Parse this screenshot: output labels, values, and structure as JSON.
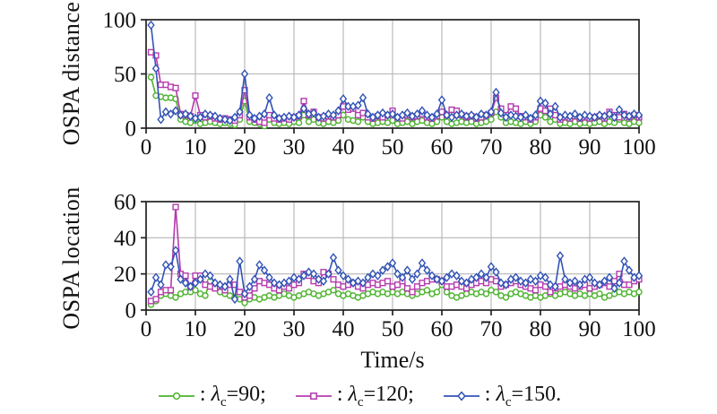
{
  "style": {
    "background": "#ffffff",
    "axis_color": "#222222",
    "grid_color": "#b5b5b5",
    "text_color": "#111111"
  },
  "legend": {
    "items": [
      {
        "marker": "circle",
        "color": "#4db32e",
        "prefix": ": ",
        "lambda": "λ",
        "sub": "c",
        "rest": "=90;",
        "label": ": λc=90;"
      },
      {
        "marker": "square",
        "color": "#b53bae",
        "prefix": ": ",
        "lambda": "λ",
        "sub": "c",
        "rest": "=120;",
        "label": ": λc=120;"
      },
      {
        "marker": "diamond",
        "color": "#3253b5",
        "prefix": ": ",
        "lambda": "λ",
        "sub": "c",
        "rest": "=150.",
        "label": ": λc=150."
      }
    ]
  },
  "chart_data": [
    {
      "type": "line",
      "title": "",
      "ylabel": "OSPA distance",
      "xlabel": "",
      "xlim": [
        0,
        100
      ],
      "ylim": [
        0,
        100
      ],
      "xticks": [
        0,
        10,
        20,
        30,
        40,
        50,
        60,
        70,
        80,
        90,
        100
      ],
      "yticks": [
        0,
        50,
        100
      ],
      "grid": true,
      "legend_position": "below-figure",
      "x_start": 1,
      "x_step": 1,
      "series": [
        {
          "name": "λc=90",
          "marker": "circle",
          "color": "#4db32e",
          "values": [
            47,
            30,
            29,
            28,
            28,
            27,
            8,
            6,
            5,
            7,
            4,
            5,
            6,
            5,
            4,
            5,
            4,
            3,
            8,
            25,
            6,
            5,
            4,
            2,
            8,
            5,
            4,
            5,
            4,
            6,
            5,
            12,
            6,
            8,
            5,
            4,
            6,
            5,
            7,
            12,
            8,
            7,
            6,
            10,
            6,
            4,
            5,
            6,
            5,
            7,
            4,
            5,
            6,
            4,
            6,
            7,
            5,
            4,
            6,
            10,
            6,
            4,
            5,
            6,
            5,
            6,
            4,
            5,
            6,
            8,
            15,
            10,
            5,
            6,
            5,
            4,
            6,
            4,
            6,
            12,
            10,
            6,
            8,
            4,
            5,
            4,
            6,
            4,
            5,
            4,
            5,
            6,
            4,
            6,
            5,
            8,
            5,
            4,
            6,
            5
          ]
        },
        {
          "name": "λc=120",
          "marker": "square",
          "color": "#b53bae",
          "values": [
            70,
            67,
            40,
            40,
            38,
            37,
            13,
            12,
            11,
            30,
            12,
            10,
            11,
            9,
            8,
            9,
            8,
            7,
            12,
            35,
            10,
            8,
            6,
            5,
            12,
            9,
            8,
            9,
            8,
            10,
            11,
            25,
            12,
            15,
            10,
            9,
            11,
            10,
            12,
            20,
            17,
            18,
            12,
            14,
            10,
            9,
            11,
            10,
            12,
            16,
            10,
            9,
            12,
            10,
            11,
            13,
            10,
            9,
            11,
            15,
            12,
            17,
            16,
            12,
            10,
            11,
            9,
            10,
            12,
            14,
            28,
            18,
            12,
            20,
            18,
            11,
            10,
            8,
            10,
            18,
            16,
            18,
            12,
            8,
            10,
            9,
            11,
            9,
            10,
            9,
            10,
            11,
            9,
            15,
            12,
            10,
            13,
            10,
            12,
            10
          ]
        },
        {
          "name": "λc=150",
          "marker": "diamond",
          "color": "#3253b5",
          "values": [
            95,
            55,
            8,
            15,
            13,
            16,
            12,
            13,
            11,
            9,
            10,
            13,
            12,
            11,
            9,
            8,
            7,
            10,
            15,
            50,
            12,
            9,
            11,
            13,
            28,
            12,
            9,
            10,
            11,
            10,
            12,
            18,
            13,
            14,
            10,
            11,
            13,
            12,
            16,
            27,
            20,
            20,
            21,
            28,
            13,
            10,
            12,
            14,
            12,
            13,
            10,
            12,
            14,
            11,
            13,
            16,
            12,
            10,
            13,
            26,
            12,
            10,
            12,
            13,
            11,
            12,
            10,
            13,
            12,
            15,
            33,
            14,
            10,
            12,
            11,
            10,
            12,
            9,
            12,
            25,
            23,
            13,
            20,
            10,
            12,
            11,
            13,
            10,
            12,
            11,
            10,
            12,
            11,
            13,
            10,
            17,
            12,
            11,
            13,
            12
          ]
        }
      ]
    },
    {
      "type": "line",
      "title": "",
      "ylabel": "OSPA location",
      "xlabel": "Time/s",
      "xlim": [
        0,
        100
      ],
      "ylim": [
        0,
        60
      ],
      "xticks": [
        0,
        10,
        20,
        30,
        40,
        50,
        60,
        70,
        80,
        90,
        100
      ],
      "yticks": [
        0,
        20,
        40,
        60
      ],
      "grid": true,
      "legend_position": "below-figure",
      "x_start": 1,
      "x_step": 1,
      "series": [
        {
          "name": "λc=90",
          "marker": "circle",
          "color": "#4db32e",
          "values": [
            3,
            5,
            8,
            9,
            8,
            7,
            9,
            10,
            10,
            11,
            9,
            8,
            16,
            13,
            10,
            9,
            8,
            7,
            6,
            4,
            6,
            7,
            6,
            7,
            8,
            7,
            8,
            9,
            8,
            7,
            8,
            9,
            10,
            9,
            8,
            9,
            10,
            11,
            9,
            8,
            9,
            8,
            7,
            8,
            9,
            10,
            9,
            10,
            9,
            10,
            9,
            10,
            9,
            8,
            9,
            10,
            11,
            9,
            10,
            14,
            10,
            8,
            7,
            8,
            9,
            10,
            9,
            10,
            9,
            11,
            10,
            8,
            7,
            9,
            10,
            9,
            8,
            7,
            8,
            7,
            8,
            9,
            8,
            9,
            10,
            9,
            8,
            9,
            8,
            9,
            8,
            9,
            7,
            8,
            9,
            10,
            9,
            10,
            9,
            10
          ]
        },
        {
          "name": "λc=120",
          "marker": "square",
          "color": "#b53bae",
          "values": [
            5,
            6,
            10,
            11,
            11,
            57,
            20,
            19,
            13,
            19,
            19,
            14,
            13,
            12,
            13,
            11,
            14,
            14,
            10,
            7,
            8,
            12,
            16,
            15,
            14,
            12,
            11,
            13,
            12,
            14,
            15,
            20,
            19,
            16,
            15,
            21,
            20,
            17,
            14,
            13,
            14,
            15,
            13,
            12,
            14,
            15,
            14,
            15,
            16,
            13,
            14,
            16,
            12,
            10,
            13,
            15,
            16,
            17,
            17,
            16,
            13,
            13,
            14,
            13,
            12,
            14,
            15,
            16,
            15,
            17,
            16,
            13,
            14,
            15,
            16,
            14,
            13,
            12,
            11,
            14,
            13,
            10,
            12,
            13,
            14,
            13,
            12,
            13,
            14,
            12,
            13,
            14,
            15,
            13,
            16,
            20,
            14,
            14,
            16,
            17
          ]
        },
        {
          "name": "λc=150",
          "marker": "diamond",
          "color": "#3253b5",
          "values": [
            10,
            18,
            14,
            25,
            24,
            33,
            17,
            15,
            13,
            15,
            17,
            20,
            19,
            15,
            14,
            13,
            17,
            6,
            27,
            9,
            13,
            17,
            25,
            22,
            18,
            15,
            14,
            15,
            16,
            18,
            17,
            19,
            21,
            20,
            17,
            16,
            20,
            29,
            22,
            19,
            17,
            15,
            16,
            15,
            18,
            20,
            19,
            22,
            24,
            26,
            20,
            18,
            22,
            17,
            20,
            26,
            22,
            19,
            17,
            16,
            18,
            20,
            19,
            16,
            15,
            17,
            18,
            20,
            18,
            24,
            21,
            15,
            14,
            17,
            18,
            16,
            15,
            17,
            16,
            19,
            18,
            14,
            13,
            30,
            17,
            15,
            16,
            14,
            17,
            18,
            15,
            14,
            16,
            18,
            12,
            15,
            27,
            22,
            18,
            19
          ]
        }
      ]
    }
  ]
}
